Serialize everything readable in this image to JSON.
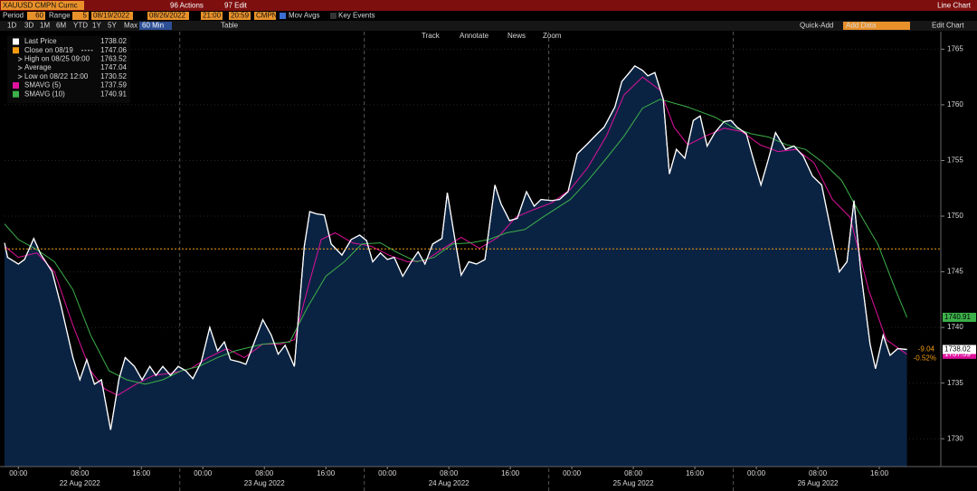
{
  "header": {
    "ticker": "XAUUSD CMPN Curnc",
    "actions": "96 Actions",
    "edit": "97 Edit",
    "view": "Line Chart"
  },
  "controls": {
    "period_label": "Period",
    "period": "60",
    "range_label": "Range",
    "range": "5",
    "start_date": "08/19/2022",
    "end_date": "08/26/2022",
    "start_time": "21:00",
    "end_time": "20:59",
    "source": "CMPN",
    "mov_avgs": "Mov Avgs",
    "key_events": "Key Events"
  },
  "toolbar": {
    "ranges": [
      "1D",
      "3D",
      "1M",
      "6M",
      "YTD",
      "1Y",
      "5Y",
      "Max"
    ],
    "interval": "60 Min",
    "table": "Table",
    "quick_add": "Quick-Add",
    "add_data": "Add Data",
    "edit_chart": "Edit Chart"
  },
  "chart_tools": [
    "Track",
    "Annotate",
    "News",
    "Zoom"
  ],
  "chart_data": {
    "type": "line",
    "xlim": [
      -1.8,
      120
    ],
    "ylim": [
      1727.5,
      1765.6
    ],
    "yticks": [
      1730,
      1735,
      1740,
      1745,
      1750,
      1755,
      1760,
      1765
    ],
    "xticks": [
      {
        "value": 0,
        "label": "00:00"
      },
      {
        "value": 8,
        "label": "08:00"
      },
      {
        "value": 16,
        "label": "16:00"
      },
      {
        "value": 24,
        "label": "00:00"
      },
      {
        "value": 32,
        "label": "08:00"
      },
      {
        "value": 40,
        "label": "16:00"
      },
      {
        "value": 48,
        "label": "00:00"
      },
      {
        "value": 56,
        "label": "08:00"
      },
      {
        "value": 64,
        "label": "16:00"
      },
      {
        "value": 72,
        "label": "00:00"
      },
      {
        "value": 80,
        "label": "08:00"
      },
      {
        "value": 88,
        "label": "16:00"
      },
      {
        "value": 96,
        "label": "00:00"
      },
      {
        "value": 104,
        "label": "08:00"
      },
      {
        "value": 112,
        "label": "16:00"
      }
    ],
    "x_date_labels": [
      {
        "value": 8,
        "label": "22 Aug 2022"
      },
      {
        "value": 32,
        "label": "23 Aug 2022"
      },
      {
        "value": 56,
        "label": "24 Aug 2022"
      },
      {
        "value": 80,
        "label": "25 Aug 2022"
      },
      {
        "value": 104,
        "label": "26 Aug 2022"
      }
    ],
    "session_breaks": [
      21,
      45,
      69,
      93
    ],
    "grid": true,
    "reference_line": {
      "label": "Close on 08/19",
      "value": 1747.06,
      "color": "#f39c12"
    },
    "stats": [
      {
        "label": "High on 08/25 09:00",
        "value": 1763.52
      },
      {
        "label": "Average",
        "value": 1747.04
      },
      {
        "label": "Low on 08/22 12:00",
        "value": 1730.52
      }
    ],
    "change": -9.04,
    "change_pct": -0.52,
    "change_pct_label": "-0.52%",
    "series": [
      {
        "name": "Last Price",
        "color": "#ffffff",
        "area_color": "#0b2342",
        "x": [
          -1.8,
          -1.4,
          0,
          0.8,
          2.0,
          2.9,
          4.4,
          5.6,
          7.1,
          8.0,
          8.9,
          9.9,
          10.8,
          12.0,
          13.1,
          13.9,
          15.1,
          16.1,
          17.1,
          17.9,
          18.8,
          19.8,
          20.8,
          21.8,
          22.7,
          23.8,
          24.9,
          25.9,
          26.8,
          27.6,
          28.8,
          29.6,
          30.6,
          31.8,
          32.9,
          33.8,
          34.7,
          35.9,
          37.2,
          37.9,
          38.8,
          39.8,
          40.7,
          42.1,
          43.3,
          44.4,
          45.3,
          46.1,
          47.1,
          48.0,
          48.9,
          50.0,
          51.2,
          52.0,
          52.9,
          53.9,
          55.1,
          55.8,
          56.7,
          57.6,
          58.6,
          59.6,
          60.7,
          62.0,
          62.8,
          63.9,
          64.9,
          66.1,
          67.1,
          68.0,
          69.4,
          70.4,
          71.5,
          72.7,
          73.9,
          75.3,
          76.2,
          77.6,
          78.5,
          79.5,
          80.2,
          81.2,
          81.9,
          82.8,
          83.9,
          84.7,
          85.6,
          86.7,
          87.8,
          88.7,
          89.6,
          90.6,
          91.8,
          92.7,
          93.5,
          94.7,
          95.5,
          96.6,
          97.6,
          98.5,
          99.8,
          100.9,
          102.1,
          103.3,
          104.5,
          105.6,
          106.8,
          107.8,
          108.7,
          109.6,
          110.8,
          111.5,
          112.5,
          113.4,
          114.4,
          115.6
        ],
        "values": [
          1747.6,
          1746.3,
          1745.7,
          1746.1,
          1748.0,
          1746.6,
          1745.0,
          1741.8,
          1737.3,
          1735.3,
          1737.1,
          1734.9,
          1735.3,
          1730.8,
          1735.4,
          1737.3,
          1736.5,
          1735.3,
          1736.5,
          1735.7,
          1736.5,
          1735.7,
          1736.5,
          1736.1,
          1735.4,
          1736.9,
          1740.0,
          1737.9,
          1738.7,
          1737.1,
          1736.9,
          1736.7,
          1738.5,
          1740.7,
          1739.3,
          1737.6,
          1738.4,
          1736.5,
          1747.3,
          1750.4,
          1750.2,
          1750.1,
          1747.5,
          1746.5,
          1747.9,
          1748.3,
          1747.8,
          1745.9,
          1746.7,
          1746.1,
          1746.3,
          1744.6,
          1746.0,
          1746.8,
          1745.7,
          1747.5,
          1748.0,
          1752.1,
          1748.3,
          1744.7,
          1745.9,
          1745.7,
          1746.1,
          1752.8,
          1751.1,
          1749.6,
          1749.8,
          1752.2,
          1750.9,
          1751.5,
          1751.4,
          1751.5,
          1752.2,
          1755.6,
          1756.4,
          1757.4,
          1758.0,
          1759.8,
          1762.1,
          1762.9,
          1763.5,
          1763.1,
          1762.6,
          1762.9,
          1760.5,
          1753.8,
          1756.0,
          1755.2,
          1758.6,
          1759.0,
          1756.3,
          1757.5,
          1758.5,
          1758.6,
          1758.0,
          1757.4,
          1755.4,
          1752.8,
          1755.2,
          1757.5,
          1756.0,
          1756.3,
          1755.4,
          1753.6,
          1752.8,
          1749.1,
          1745.0,
          1745.9,
          1751.4,
          1745.0,
          1738.5,
          1736.3,
          1739.3,
          1737.5,
          1738.1,
          1738.02
        ]
      },
      {
        "name": "SMAVG (5)",
        "color": "#e0119d",
        "x": [
          -1.8,
          0,
          2.4,
          4.7,
          7.1,
          9.4,
          11.2,
          12.9,
          15.3,
          17.6,
          20.0,
          22.4,
          24.7,
          27.1,
          29.4,
          31.8,
          34.1,
          35.9,
          37.6,
          39.4,
          41.2,
          43.5,
          45.9,
          48.2,
          50.6,
          52.9,
          55.3,
          57.6,
          60.0,
          62.4,
          64.7,
          67.1,
          69.4,
          71.8,
          74.1,
          76.5,
          78.8,
          81.2,
          83.5,
          85.3,
          87.1,
          89.4,
          91.8,
          94.1,
          96.5,
          98.8,
          101.2,
          103.5,
          105.9,
          108.2,
          110.6,
          112.9,
          115.6
        ],
        "values": [
          1747.3,
          1746.3,
          1746.7,
          1745.0,
          1740.2,
          1736.1,
          1734.5,
          1733.9,
          1734.9,
          1735.7,
          1735.9,
          1736.3,
          1737.3,
          1738.1,
          1737.3,
          1738.5,
          1738.5,
          1738.9,
          1743.4,
          1747.9,
          1748.5,
          1747.6,
          1747.3,
          1746.5,
          1745.9,
          1746.0,
          1747.1,
          1748.1,
          1747.1,
          1748.1,
          1749.9,
          1750.6,
          1751.2,
          1752.4,
          1754.4,
          1757.2,
          1760.9,
          1762.5,
          1761.3,
          1758.0,
          1756.4,
          1757.2,
          1757.9,
          1757.6,
          1756.4,
          1755.8,
          1756.0,
          1754.8,
          1751.5,
          1749.9,
          1743.4,
          1738.9,
          1737.59
        ]
      },
      {
        "name": "SMAVG (10)",
        "color": "#3cb04a",
        "x": [
          -1.8,
          0,
          2.4,
          4.7,
          7.1,
          9.4,
          11.8,
          14.1,
          16.5,
          18.8,
          21.2,
          23.5,
          25.9,
          28.2,
          31.8,
          35.3,
          37.6,
          40.0,
          42.4,
          44.7,
          47.1,
          49.4,
          51.8,
          54.1,
          56.5,
          58.8,
          61.2,
          63.5,
          65.9,
          68.2,
          71.8,
          74.1,
          76.5,
          78.8,
          81.2,
          83.5,
          87.1,
          90.6,
          92.9,
          95.3,
          97.6,
          100.0,
          102.4,
          104.7,
          107.1,
          109.4,
          111.8,
          114.1,
          115.6
        ],
        "values": [
          1749.3,
          1747.9,
          1747.0,
          1745.9,
          1743.4,
          1739.3,
          1736.1,
          1735.3,
          1734.9,
          1735.3,
          1736.1,
          1736.5,
          1737.3,
          1737.9,
          1738.5,
          1738.7,
          1741.8,
          1744.6,
          1745.9,
          1747.5,
          1747.6,
          1746.7,
          1745.9,
          1746.3,
          1747.5,
          1747.6,
          1747.9,
          1748.5,
          1748.8,
          1749.9,
          1751.5,
          1753.2,
          1755.2,
          1757.2,
          1759.7,
          1760.5,
          1759.8,
          1758.9,
          1758.0,
          1757.4,
          1757.1,
          1756.4,
          1756.0,
          1754.8,
          1753.2,
          1750.3,
          1747.5,
          1743.4,
          1740.91
        ]
      }
    ]
  }
}
